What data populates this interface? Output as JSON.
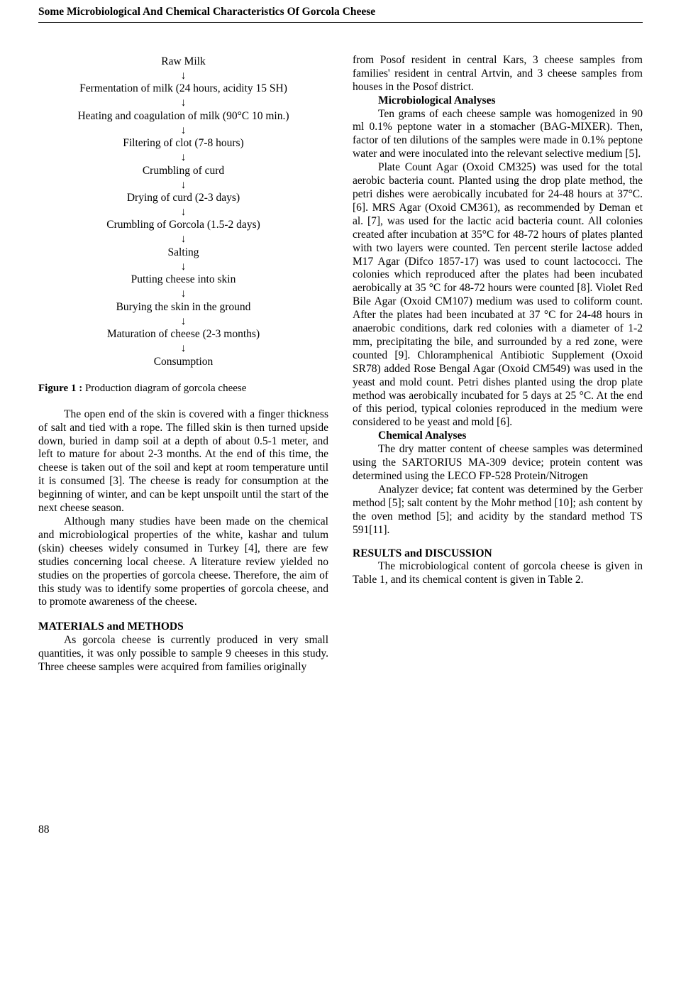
{
  "header": "Some Microbiological And Chemical Characteristics Of Gorcola Cheese",
  "page_number": "88",
  "diagram": {
    "steps": [
      "Raw Milk",
      "Fermentation of milk (24 hours, acidity 15 SH)",
      "Heating and coagulation of milk (90°C 10 min.)",
      "Filtering of clot (7-8 hours)",
      "Crumbling of curd",
      "Drying of curd (2-3 days)",
      "Crumbling of Gorcola (1.5-2 days)",
      "Salting",
      "Putting cheese into skin",
      "Burying the skin in the ground",
      "Maturation of cheese (2-3 months)",
      "Consumption"
    ],
    "arrow": "↓"
  },
  "figure_caption": {
    "label": "Figure 1 : ",
    "text": "Production diagram of gorcola cheese"
  },
  "col1": {
    "p1": "The open end of the skin is covered with a finger thickness of salt and tied with a rope. The filled skin is then turned upside down, buried in damp soil at a depth of about 0.5-1 meter, and left to mature for about 2-3 months. At the end of this time, the cheese is taken out of the soil and kept at room temperature until it is consumed [3]. The cheese is ready for consumption at the beginning of winter, and can be kept unspoilt until the start of the next cheese season.",
    "p2": "Although many studies have been made on the chemical and microbiological properties of the white, kashar and tulum (skin) cheeses widely consumed in Turkey [4], there are few studies concerning local cheese. A literature review yielded no studies on the properties of gorcola cheese. Therefore, the aim of this study was to identify some properties of gorcola cheese, and to promote awareness of the cheese.",
    "h1": "MATERIALS and METHODS",
    "p3": "As gorcola cheese is currently produced in very small quantities, it was only possible to sample 9 cheeses in this study. Three cheese samples were acquired from families originally"
  },
  "col2": {
    "p1": "from Posof resident in central Kars, 3 cheese samples from families' resident in central Artvin, and 3 cheese samples from houses in the Posof district.",
    "h1": "Microbiological Analyses",
    "p2": "Ten grams of each cheese sample was homogenized in 90 ml 0.1% peptone water in a stomacher (BAG-MIXER). Then, factor of ten dilutions of the samples were made in 0.1% peptone water and were inoculated into the relevant selective medium [5].",
    "p3": "Plate Count Agar (Oxoid CM325) was used for the total aerobic bacteria count. Planted using the drop plate method, the petri dishes were aerobically incubated for 24-48 hours at 37°C. [6]. MRS Agar (Oxoid CM361), as recommended by Deman et al. [7], was used for the lactic acid bacteria count. All colonies created after incubation at 35°C for 48-72 hours of plates planted with two layers were counted. Ten percent sterile lactose added M17 Agar (Difco 1857-17) was used to count lactococci. The colonies which reproduced after the plates had been incubated aerobically at 35 °C for 48-72 hours were counted [8]. Violet Red Bile Agar (Oxoid CM107) medium was used to coliform count. After the plates had been incubated at 37 °C for 24-48 hours in anaerobic conditions, dark red colonies with a diameter of 1-2 mm, precipitating the bile, and surrounded by a red zone, were counted [9]. Chloramphenical Antibiotic Supplement (Oxoid SR78) added Rose Bengal Agar (Oxoid CM549) was used in the yeast and mold count. Petri dishes planted using the drop plate method was aerobically incubated for 5 days at 25 °C. At the end of this period, typical colonies reproduced in the medium were considered to be yeast and mold [6].",
    "h2": "Chemical Analyses",
    "p4": "The dry matter content of cheese samples was determined using the SARTORIUS MA-309 device; protein content was determined using the LECO FP-528 Protein/Nitrogen",
    "p5": "Analyzer device; fat content was determined by the Gerber method [5]; salt content by the Mohr method [10]; ash content by the oven method [5]; and acidity by the standard method TS 591[11].",
    "h3": "RESULTS and DISCUSSION",
    "p6": "The microbiological content of gorcola cheese is given in Table 1, and its chemical content is given in Table 2."
  }
}
